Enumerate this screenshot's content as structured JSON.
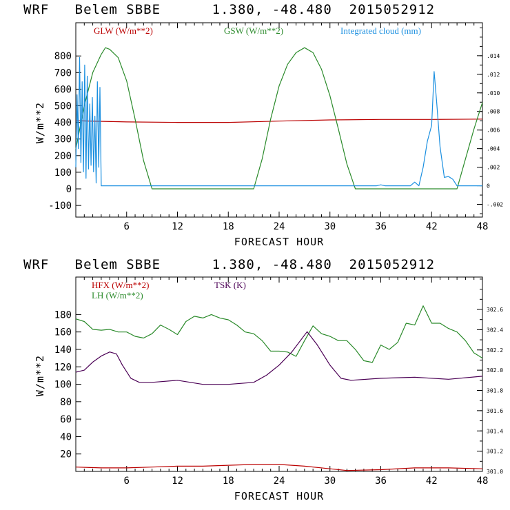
{
  "chart_data": [
    {
      "type": "line",
      "title": "WRF   Belem SBBE      1.380, -48.480  2015052912",
      "xlabel": "FORECAST HOUR",
      "ylabel": "W/m**2",
      "xlim": [
        0,
        48
      ],
      "ylim": [
        -170,
        1000
      ],
      "xticks": [
        6,
        12,
        18,
        24,
        30,
        36,
        42,
        48
      ],
      "yticks": [
        -100,
        0,
        100,
        200,
        300,
        400,
        500,
        600,
        700,
        800
      ],
      "y2ticks": [
        ".014",
        ".012",
        ".010",
        ".008",
        ".006",
        ".004",
        ".002",
        "0",
        "-.002"
      ],
      "y2values": [
        0.014,
        0.012,
        0.01,
        0.008,
        0.006,
        0.004,
        0.002,
        0,
        -0.002
      ],
      "y2lim": [
        -0.00337,
        0.01755
      ],
      "series": [
        {
          "name": "GLW (W/m**2)",
          "color": "#bb0000",
          "axis": "left",
          "x": [
            0,
            6,
            12,
            18,
            24,
            30,
            36,
            42,
            48
          ],
          "values": [
            410,
            403,
            400,
            400,
            408,
            415,
            418,
            418,
            420
          ]
        },
        {
          "name": "GSW (W/m**2)",
          "color": "#2a8a2a",
          "axis": "left",
          "x": [
            0,
            1,
            2,
            3,
            3.5,
            4,
            5,
            6,
            7,
            8,
            9,
            21,
            22,
            23,
            24,
            25,
            26,
            27,
            28,
            29,
            30,
            31,
            32,
            33,
            45,
            46,
            47,
            48
          ],
          "values": [
            240,
            500,
            700,
            810,
            850,
            840,
            790,
            650,
            420,
            170,
            0,
            0,
            180,
            420,
            620,
            750,
            820,
            850,
            820,
            720,
            560,
            360,
            150,
            0,
            0,
            180,
            360,
            520
          ]
        },
        {
          "name": "Integrated cloud (mm)",
          "color": "#1a8fe0",
          "axis": "right",
          "x": [
            0,
            0.15,
            0.3,
            0.45,
            0.6,
            0.75,
            0.9,
            1.05,
            1.2,
            1.35,
            1.5,
            1.65,
            1.8,
            1.95,
            2.1,
            2.25,
            2.4,
            2.55,
            2.7,
            2.85,
            3.0,
            3.2,
            35.5,
            36,
            36.5,
            39.5,
            40,
            40.5,
            41,
            41.5,
            42,
            42.3,
            42.6,
            43,
            43.5,
            44,
            44.5,
            45,
            45.5,
            48
          ],
          "values": [
            0.002,
            0.0098,
            0.004,
            0.0138,
            0.0025,
            0.0112,
            0.0015,
            0.013,
            0.0008,
            0.0118,
            0.0018,
            0.0088,
            0.0022,
            0.0095,
            0.0015,
            0.0075,
            0.0003,
            0.0112,
            0.002,
            0.0106,
            0.0,
            0.0,
            0.0,
            0.0001,
            0.0,
            0.0,
            0.0004,
            0.0,
            0.002,
            0.0048,
            0.0065,
            0.0123,
            0.009,
            0.0042,
            0.0009,
            0.001,
            0.0007,
            0.0,
            0.0,
            0.0
          ]
        }
      ]
    },
    {
      "type": "line",
      "title": "WRF   Belem SBBE      1.380, -48.480  2015052912",
      "xlabel": "FORECAST HOUR",
      "ylabel": "W/m**2",
      "xlim": [
        0,
        48
      ],
      "ylim": [
        0,
        223
      ],
      "xticks": [
        6,
        12,
        18,
        24,
        30,
        36,
        42,
        48
      ],
      "yticks": [
        20,
        40,
        60,
        80,
        100,
        120,
        140,
        160,
        180
      ],
      "y2ticks": [
        "302.6",
        "302.4",
        "302.2",
        "302.0",
        "301.8",
        "301.6",
        "301.4",
        "301.2",
        "301.0"
      ],
      "y2values": [
        302.6,
        302.4,
        302.2,
        302.0,
        301.8,
        301.6,
        301.4,
        301.2,
        301.0
      ],
      "y2lim": [
        301.0,
        302.92
      ],
      "series": [
        {
          "name": "HFX (W/m**2)",
          "color": "#bb0000",
          "axis": "left",
          "x": [
            0,
            3,
            6,
            9,
            12,
            15,
            18,
            21,
            24,
            27,
            30,
            32,
            36,
            40,
            44,
            48
          ],
          "values": [
            5,
            4,
            4,
            5,
            6,
            6,
            7,
            8,
            8,
            6,
            3,
            1,
            2,
            4,
            4,
            3
          ]
        },
        {
          "name": "LH (W/m**2)",
          "color": "#2a8a2a",
          "axis": "left",
          "x": [
            0,
            1,
            2,
            3,
            4,
            5,
            6,
            7,
            8,
            9,
            10,
            11,
            12,
            13,
            14,
            15,
            16,
            17,
            18,
            19,
            20,
            21,
            22,
            23,
            24,
            25,
            26,
            27,
            28,
            29,
            30,
            31,
            32,
            33,
            34,
            35,
            36,
            37,
            38,
            39,
            40,
            41,
            42,
            43,
            44,
            45,
            46,
            47,
            48
          ],
          "values": [
            175,
            172,
            163,
            162,
            163,
            160,
            160,
            155,
            153,
            158,
            168,
            163,
            157,
            172,
            178,
            176,
            180,
            176,
            174,
            168,
            160,
            158,
            150,
            138,
            138,
            137,
            132,
            150,
            167,
            158,
            155,
            150,
            150,
            140,
            127,
            125,
            145,
            140,
            148,
            170,
            168,
            190,
            170,
            170,
            164,
            160,
            150,
            136,
            130
          ]
        },
        {
          "name": "TSK (K)",
          "color": "#4b0055",
          "axis": "right",
          "x": [
            0,
            1,
            2,
            3,
            4,
            4.8,
            5.5,
            6.5,
            7.5,
            9,
            12,
            15,
            18,
            21,
            22.5,
            24,
            25.5,
            27.3,
            28.5,
            30,
            31.3,
            32.5,
            36,
            40,
            44,
            48
          ],
          "values": [
            301.98,
            302.0,
            302.08,
            302.14,
            302.18,
            302.16,
            302.05,
            301.92,
            301.88,
            301.88,
            301.9,
            301.86,
            301.86,
            301.88,
            301.95,
            302.05,
            302.18,
            302.38,
            302.25,
            302.05,
            301.92,
            301.9,
            301.92,
            301.93,
            301.91,
            301.94
          ]
        }
      ]
    }
  ]
}
